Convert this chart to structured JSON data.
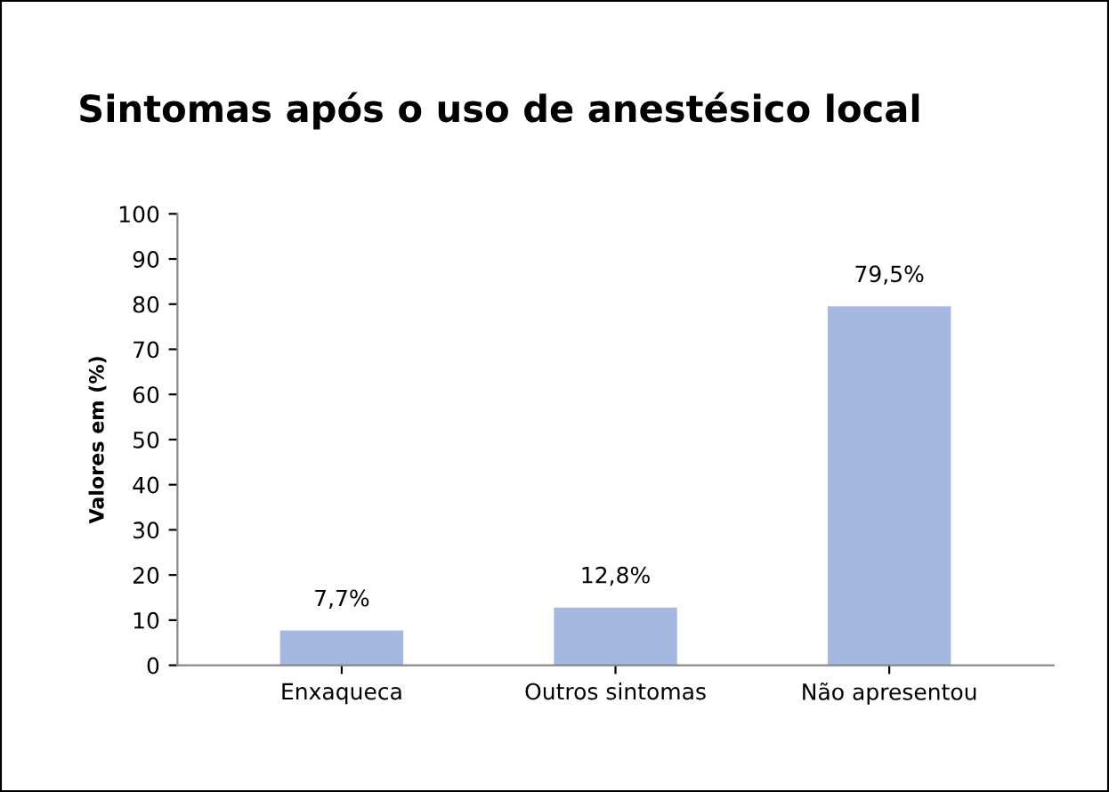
{
  "chart_data": {
    "type": "bar",
    "title": "Sintomas após o uso de anestésico local",
    "ylabel": "Valores em (%)",
    "categories": [
      "Enxaqueca",
      "Outros sintomas",
      "Não apresentou"
    ],
    "values": [
      7.7,
      12.8,
      79.5
    ],
    "color": "#a4b8e0",
    "value_labels": [
      "7,7%",
      "12,8%",
      "79,5%"
    ],
    "ylim": [
      0,
      100
    ],
    "yticks": [
      0,
      10,
      20,
      30,
      40,
      50,
      60,
      70,
      80,
      90,
      100
    ],
    "grid": false,
    "legend": false
  }
}
